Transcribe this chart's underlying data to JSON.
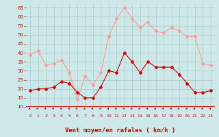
{
  "x": [
    0,
    1,
    2,
    3,
    4,
    5,
    6,
    7,
    8,
    9,
    10,
    11,
    12,
    13,
    14,
    15,
    16,
    17,
    18,
    19,
    20,
    21,
    22,
    23
  ],
  "wind_mean": [
    19,
    20,
    20,
    21,
    24,
    23,
    18,
    15,
    15,
    21,
    30,
    29,
    40,
    35,
    29,
    35,
    32,
    32,
    32,
    28,
    23,
    18,
    18,
    19
  ],
  "wind_gust": [
    39,
    41,
    33,
    34,
    36,
    29,
    14,
    27,
    22,
    29,
    49,
    59,
    65,
    59,
    54,
    57,
    52,
    51,
    54,
    52,
    49,
    49,
    34,
    33
  ],
  "bg_color": "#cce8e8",
  "grid_color": "#aacccc",
  "mean_color": "#cc0000",
  "gust_color": "#ff9999",
  "xlabel": "Vent moyen/en rafales ( km/h )",
  "xlabel_color": "#cc0000",
  "tick_color": "#cc0000",
  "axis_color": "#cc0000",
  "ylim": [
    10,
    67
  ],
  "yticks": [
    10,
    15,
    20,
    25,
    30,
    35,
    40,
    45,
    50,
    55,
    60,
    65
  ],
  "xticks": [
    0,
    1,
    2,
    3,
    4,
    5,
    6,
    7,
    8,
    9,
    10,
    11,
    12,
    13,
    14,
    15,
    16,
    17,
    18,
    19,
    20,
    21,
    22,
    23
  ]
}
